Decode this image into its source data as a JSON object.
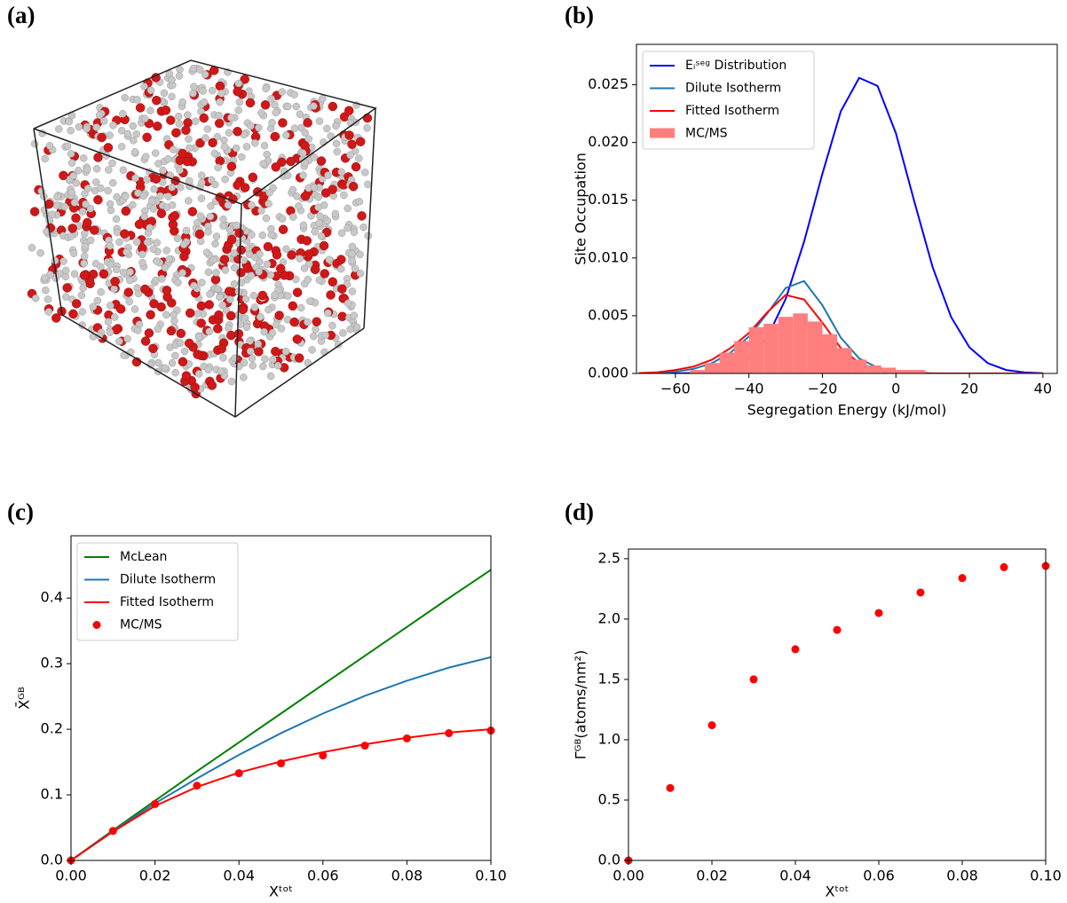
{
  "panel_labels": [
    "(a)",
    "(b)",
    "(c)",
    "(d)"
  ],
  "chart_data": [
    {
      "type": "line",
      "xlabel": "Segregation Energy (kJ/mol)",
      "ylabel": "Site Occupation",
      "xlim": [
        -70.6,
        43.9
      ],
      "ylim": [
        0,
        0.0285
      ],
      "xticks": [
        {
          "value": -60,
          "label": "−60"
        },
        {
          "value": -40,
          "label": "−40"
        },
        {
          "value": -20,
          "label": "−20"
        },
        0,
        20,
        40
      ],
      "yticks": [
        {
          "value": 0,
          "label": "0.000"
        },
        {
          "value": 0.005,
          "label": "0.005"
        },
        {
          "value": 0.01,
          "label": "0.010"
        },
        {
          "value": 0.015,
          "label": "0.015"
        },
        {
          "value": 0.02,
          "label": "0.020"
        },
        {
          "value": 0.025,
          "label": "0.025"
        }
      ],
      "legend": "upper left",
      "x": [
        -70,
        -65,
        -60,
        -55,
        -50,
        -45,
        -40,
        -35,
        -30,
        -25,
        -20,
        -15,
        -10,
        -5,
        0,
        5,
        10,
        15,
        20,
        25,
        30,
        35,
        40
      ],
      "series": [
        {
          "name": "Eᵢˢᵉᵍ Distribution",
          "type": "line",
          "color": "#0000ff",
          "values": [
            0,
            2e-06,
            1e-05,
            4e-05,
            0.00015,
            0.00047,
            0.00131,
            0.00313,
            0.00645,
            0.0114,
            0.0173,
            0.0227,
            0.0256,
            0.0249,
            0.0208,
            0.0149,
            0.0092,
            0.0049,
            0.00226,
            0.00089,
            0.0003,
            9e-05,
            2e-05
          ]
        },
        {
          "name": "Dilute Isotherm",
          "type": "line",
          "color": "#1f77b4",
          "values": [
            2e-05,
            5e-05,
            0.00015,
            0.0004,
            0.0009,
            0.0018,
            0.0032,
            0.0052,
            0.0074,
            0.008,
            0.0059,
            0.0031,
            0.0013,
            0.0005,
            0.0002,
            5e-05,
            1e-05,
            0,
            0,
            0,
            0,
            0,
            0
          ]
        },
        {
          "name": "Fitted Isotherm",
          "type": "line",
          "color": "#ff0000",
          "values": [
            3e-05,
            0.0001,
            0.0003,
            0.0006,
            0.0012,
            0.0022,
            0.0035,
            0.0053,
            0.0068,
            0.0064,
            0.0044,
            0.0022,
            0.0009,
            0.0003,
            0.0001,
            3e-05,
            0,
            0,
            0,
            0,
            0,
            0,
            0
          ]
        },
        {
          "name": "MC/MS",
          "type": "histogram",
          "color": "#ff7f7f",
          "bins": [
            -56,
            -52,
            -48,
            -44,
            -40,
            -36,
            -32,
            -28,
            -24,
            -20,
            -16,
            -12,
            -8,
            -4,
            0,
            4,
            8
          ],
          "values": [
            0.0003,
            0.0009,
            0.0018,
            0.0028,
            0.004,
            0.0043,
            0.0049,
            0.0052,
            0.0045,
            0.0034,
            0.0022,
            0.0012,
            0.0007,
            0.0005,
            0.0003,
            0.0003
          ]
        }
      ]
    },
    {
      "type": "line",
      "xlabel": "Xᵗᵒᵗ",
      "ylabel": "X̄ᴳᴮ",
      "xlim": [
        0,
        0.1
      ],
      "ylim": [
        0,
        0.495
      ],
      "xticks": [
        {
          "value": 0,
          "label": "0.00"
        },
        {
          "value": 0.02,
          "label": "0.02"
        },
        {
          "value": 0.04,
          "label": "0.04"
        },
        {
          "value": 0.06,
          "label": "0.06"
        },
        {
          "value": 0.08,
          "label": "0.08"
        },
        {
          "value": 0.1,
          "label": "0.10"
        }
      ],
      "yticks": [
        {
          "value": 0,
          "label": "0.0"
        },
        0.1,
        0.2,
        0.3,
        0.4
      ],
      "legend": "upper left",
      "x": [
        0,
        0.01,
        0.02,
        0.03,
        0.04,
        0.05,
        0.06,
        0.07,
        0.08,
        0.09,
        0.1
      ],
      "series": [
        {
          "name": "McLean",
          "type": "line",
          "color": "#008000",
          "values": [
            0,
            0.046,
            0.091,
            0.136,
            0.18,
            0.224,
            0.268,
            0.312,
            0.356,
            0.4,
            0.443
          ]
        },
        {
          "name": "Dilute Isotherm",
          "type": "line",
          "color": "#1f77b4",
          "values": [
            0,
            0.045,
            0.087,
            0.125,
            0.161,
            0.194,
            0.224,
            0.251,
            0.274,
            0.294,
            0.31
          ]
        },
        {
          "name": "Fitted Isotherm",
          "type": "line",
          "color": "#ff0000",
          "values": [
            0,
            0.044,
            0.083,
            0.112,
            0.134,
            0.151,
            0.165,
            0.177,
            0.187,
            0.195,
            0.2
          ]
        },
        {
          "name": "MC/MS",
          "type": "scatter",
          "color": "#ff0000",
          "values": [
            0,
            0.045,
            0.086,
            0.114,
            0.133,
            0.148,
            0.16,
            0.175,
            0.186,
            0.194,
            0.198
          ]
        }
      ]
    },
    {
      "type": "scatter",
      "xlabel": "Xᵗᵒᵗ",
      "ylabel": "Γᴳᴮ(atoms/nm²)",
      "xlim": [
        0,
        0.1
      ],
      "ylim": [
        0,
        2.58
      ],
      "xticks": [
        {
          "value": 0,
          "label": "0.00"
        },
        {
          "value": 0.02,
          "label": "0.02"
        },
        {
          "value": 0.04,
          "label": "0.04"
        },
        {
          "value": 0.06,
          "label": "0.06"
        },
        {
          "value": 0.08,
          "label": "0.08"
        },
        {
          "value": 0.1,
          "label": "0.10"
        }
      ],
      "yticks": [
        {
          "value": 0,
          "label": "0.0"
        },
        0.5,
        {
          "value": 1,
          "label": "1.0"
        },
        1.5,
        {
          "value": 2,
          "label": "2.0"
        },
        2.5
      ],
      "x": [
        0,
        0.01,
        0.02,
        0.03,
        0.04,
        0.05,
        0.06,
        0.07,
        0.08,
        0.09,
        0.1
      ],
      "series": [
        {
          "type": "scatter",
          "color": "#ff0000",
          "values": [
            0,
            0.6,
            1.12,
            1.5,
            1.75,
            1.91,
            2.05,
            2.22,
            2.34,
            2.43,
            2.44
          ]
        }
      ]
    }
  ]
}
